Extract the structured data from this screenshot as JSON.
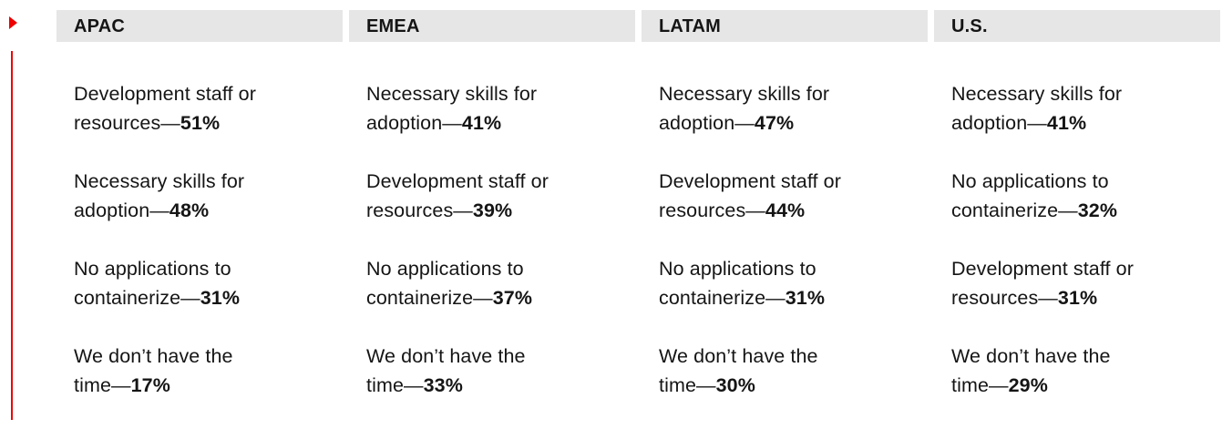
{
  "columns": [
    {
      "header": "APAC",
      "items": [
        {
          "line1": "Development staff or",
          "line2": "resources—",
          "pct": "51%"
        },
        {
          "line1": "Necessary skills for",
          "line2": "adoption—",
          "pct": "48%"
        },
        {
          "line1": "No applications to",
          "line2": "containerize—",
          "pct": "31%"
        },
        {
          "line1": "We don’t have the",
          "line2": "time—",
          "pct": "17%"
        }
      ]
    },
    {
      "header": "EMEA",
      "items": [
        {
          "line1": "Necessary skills for",
          "line2": "adoption—",
          "pct": "41%"
        },
        {
          "line1": "Development staff or",
          "line2": "resources—",
          "pct": "39%"
        },
        {
          "line1": "No applications to",
          "line2": "containerize—",
          "pct": "37%"
        },
        {
          "line1": "We don’t have the",
          "line2": "time—",
          "pct": "33%"
        }
      ]
    },
    {
      "header": "LATAM",
      "items": [
        {
          "line1": "Necessary skills for",
          "line2": "adoption—",
          "pct": "47%"
        },
        {
          "line1": "Development staff or",
          "line2": "resources—",
          "pct": "44%"
        },
        {
          "line1": "No applications to",
          "line2": "containerize—",
          "pct": "31%"
        },
        {
          "line1": "We don’t have the",
          "line2": "time—",
          "pct": "30%"
        }
      ]
    },
    {
      "header": "U.S.",
      "items": [
        {
          "line1": "Necessary skills for",
          "line2": "adoption—",
          "pct": "41%"
        },
        {
          "line1": "No applications to",
          "line2": "containerize—",
          "pct": "32%"
        },
        {
          "line1": "Development staff or",
          "line2": "resources—",
          "pct": "31%"
        },
        {
          "line1": "We don’t have the",
          "line2": "time—",
          "pct": "29%"
        }
      ]
    }
  ],
  "colors": {
    "accent": "#ee0000",
    "header_bg": "#e6e6e6",
    "text": "#151515"
  },
  "icons": {
    "marker": "triangle-right-icon"
  }
}
